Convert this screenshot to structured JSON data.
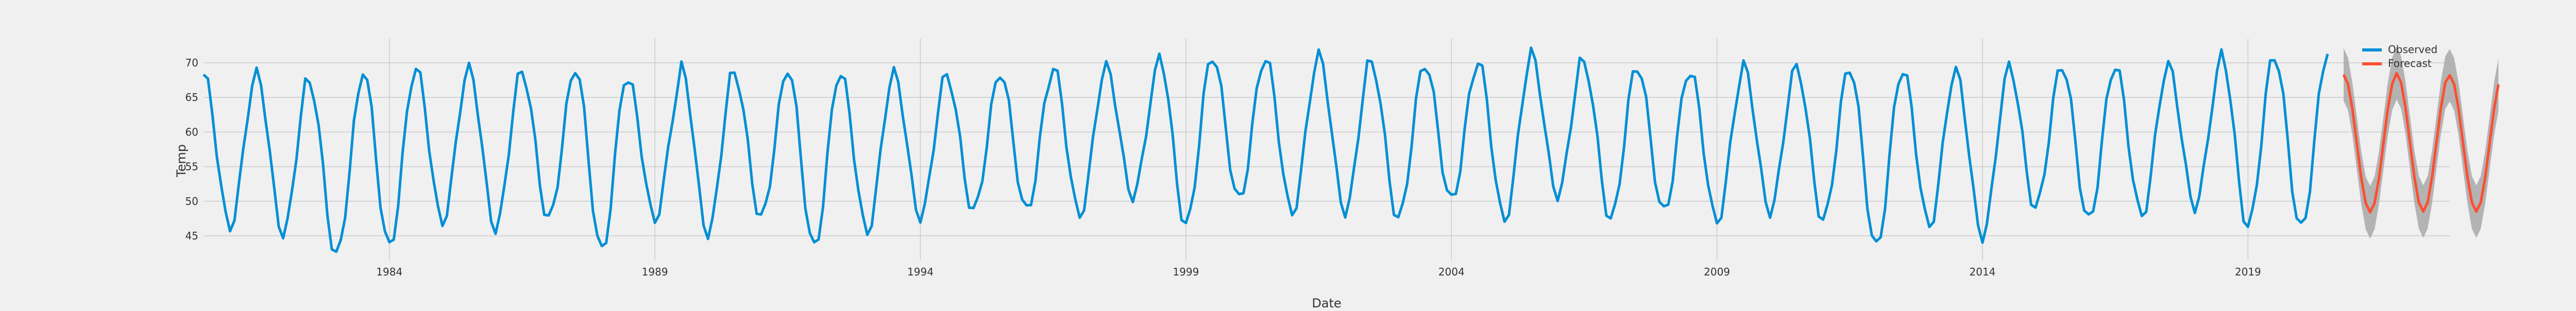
{
  "chart_data": {
    "type": "line",
    "xlabel": "Date",
    "ylabel": "Temp",
    "x_range": [
      1980.5,
      2022.8
    ],
    "ylim": [
      41.5,
      73.5
    ],
    "y_ticks": [
      45,
      50,
      55,
      60,
      65,
      70
    ],
    "x_ticks": [
      1984,
      1989,
      1994,
      1999,
      2004,
      2009,
      2014,
      2019
    ],
    "grid": true,
    "legend_position": "top-right",
    "colors": {
      "background": "#f0f0f0",
      "grid": "#cbcbcb",
      "observed": "#008fd5",
      "forecast": "#fc4f30",
      "band": "#a8a8a8",
      "text": "#333333"
    },
    "series": [
      {
        "name": "Observed",
        "color": "#008fd5",
        "start_year": 1980.5,
        "step_months": 1,
        "monthly_peaks": [
          68.3,
          68.4,
          67.1,
          69.2,
          69.2,
          69.1,
          68.6,
          69.4,
          67.3,
          69.3,
          68.4,
          69.3,
          68.3,
          68.5,
          68.1,
          68.7,
          69.4,
          69.4,
          71.0,
          71.0,
          70.6,
          71.1,
          69.8,
          69.9,
          70.3,
          71.4,
          69.7,
          69.5,
          68.6,
          69.6,
          69.3,
          69.3,
          68.9,
          68.7,
          69.6,
          69.6,
          69.6,
          69.6,
          71.3,
          71.0
        ],
        "monthly_troughs": [
          46.3,
          45.3,
          42.1,
          43.4,
          47.0,
          46.0,
          47.4,
          42.8,
          47.4,
          45.3,
          47.6,
          43.3,
          45.6,
          47.7,
          48.6,
          48.6,
          48.0,
          50.7,
          46.5,
          50.2,
          48.3,
          48.5,
          47.4,
          50.1,
          47.3,
          50.9,
          47.3,
          48.4,
          47.0,
          48.5,
          47.2,
          43.3,
          46.4,
          44.9,
          49.0,
          47.2,
          47.9,
          49.2,
          46.3,
          46.0
        ],
        "end_value": 71.3
      },
      {
        "name": "Forecast",
        "color": "#fc4f30",
        "start_year": 2020.8,
        "peaks": [
          68.3,
          68.5,
          68.2
        ],
        "troughs": [
          48.4,
          48.5
        ],
        "band_half_width": 3.8
      }
    ]
  },
  "legend": {
    "observed_label": "Observed",
    "forecast_label": "Forecast"
  }
}
